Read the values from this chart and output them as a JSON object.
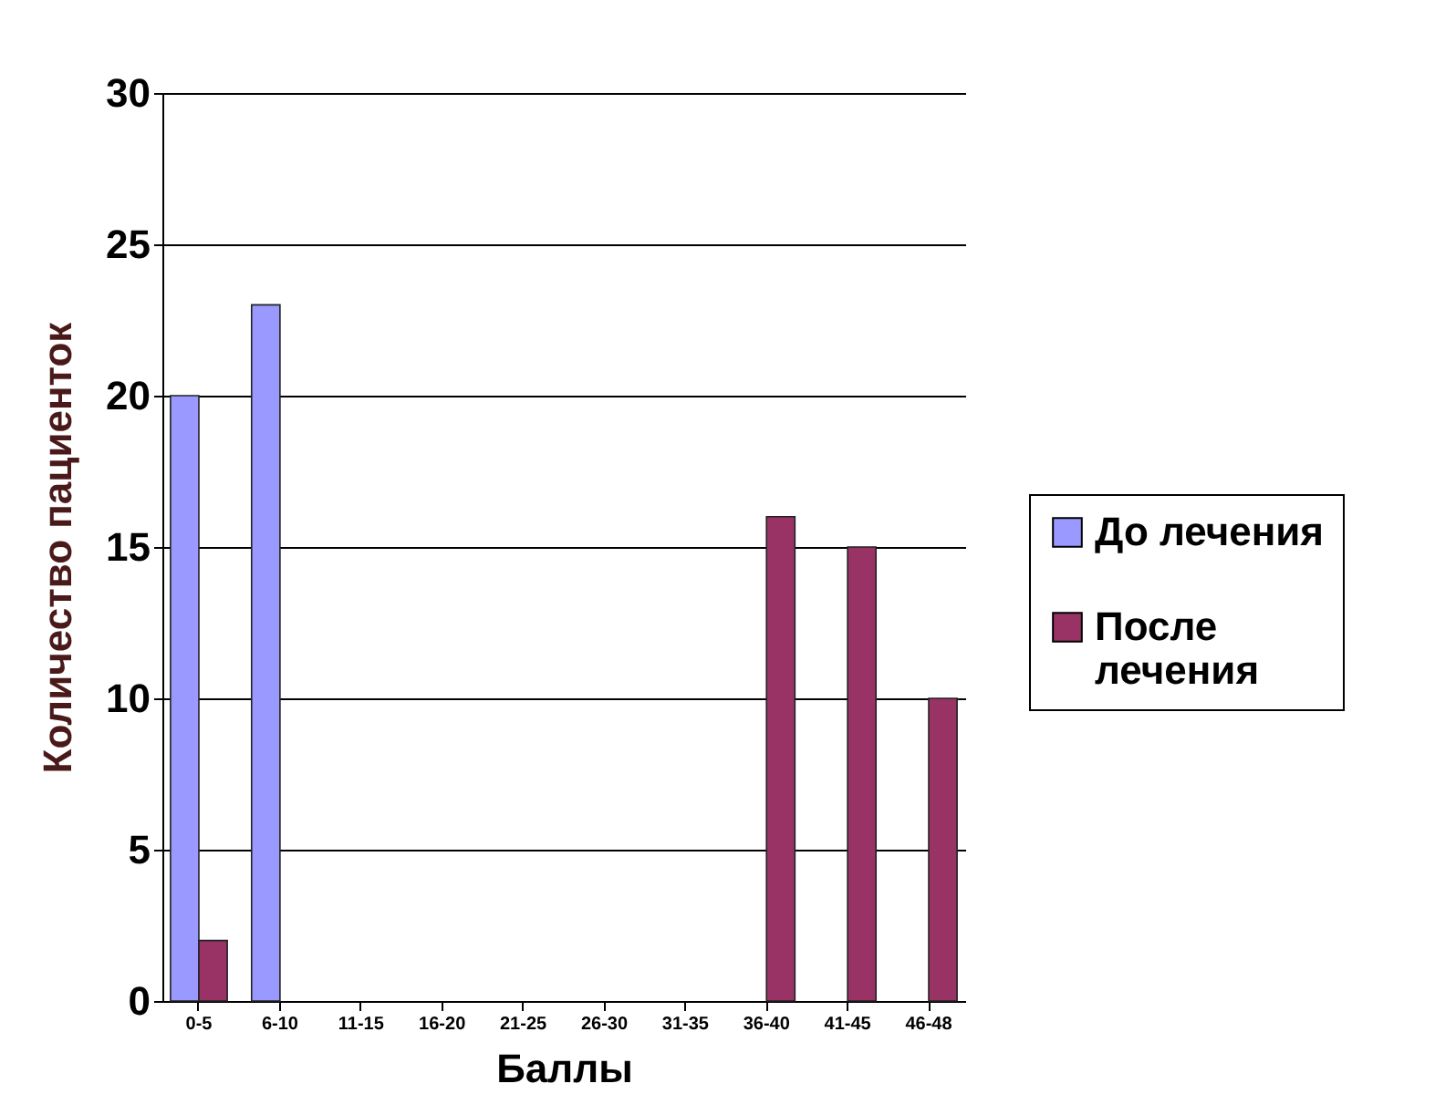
{
  "chart_data": {
    "type": "bar",
    "xlabel": "Баллы",
    "ylabel": "Количество пациенток",
    "categories": [
      "0-5",
      "6-10",
      "11-15",
      "16-20",
      "21-25",
      "26-30",
      "31-35",
      "36-40",
      "41-45",
      "46-48"
    ],
    "series": [
      {
        "name": "До лечения",
        "color": "#9999ff",
        "values": [
          20,
          23,
          null,
          null,
          null,
          null,
          null,
          null,
          null,
          null
        ]
      },
      {
        "name": "После лечения",
        "color": "#993366",
        "values": [
          2,
          null,
          null,
          null,
          null,
          null,
          null,
          16,
          15,
          10
        ]
      }
    ],
    "ylim": [
      0,
      30
    ],
    "yticks": [
      0,
      5,
      10,
      15,
      20,
      25,
      30
    ],
    "grid": "y",
    "legend": "right"
  }
}
